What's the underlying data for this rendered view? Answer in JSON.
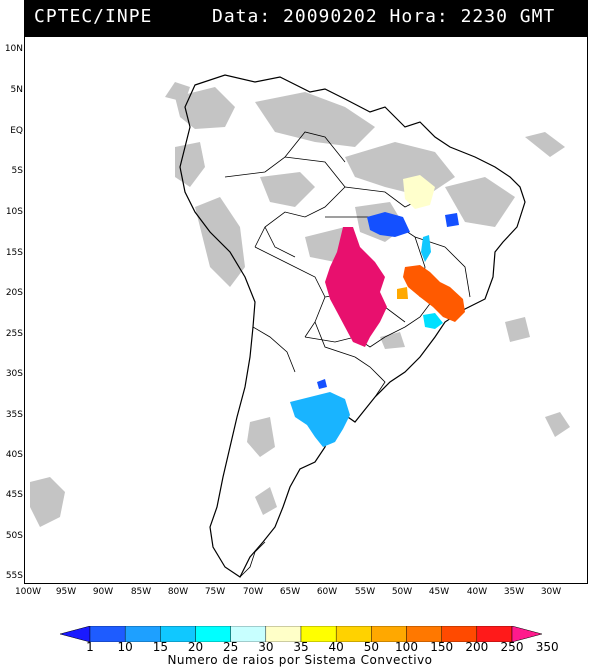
{
  "header": {
    "source": "CPTEC/INPE",
    "datetime": "Data: 20090202 Hora: 2230 GMT"
  },
  "map": {
    "lat_labels": [
      "10N",
      "5N",
      "EQ",
      "5S",
      "10S",
      "15S",
      "20S",
      "25S",
      "30S",
      "35S",
      "40S",
      "45S",
      "50S",
      "55S"
    ],
    "lon_labels": [
      "100W",
      "95W",
      "90W",
      "85W",
      "80W",
      "75W",
      "70W",
      "65W",
      "60W",
      "55W",
      "50W",
      "45W",
      "40W",
      "35W",
      "30W"
    ],
    "colors": {
      "land_outline": "#000000",
      "cloud": "#c4c4c4"
    }
  },
  "legend": {
    "title": "Numero de raios por Sistema Convectivo",
    "ticks": [
      "1",
      "10",
      "15",
      "20",
      "25",
      "30",
      "35",
      "40",
      "50",
      "100",
      "150",
      "200",
      "250",
      "350"
    ],
    "colors": [
      "#1a1aff",
      "#1e5cff",
      "#1ea0ff",
      "#10c8ff",
      "#00ffff",
      "#c8ffff",
      "#ffffc8",
      "#ffff00",
      "#ffd200",
      "#ffa800",
      "#ff7800",
      "#ff4a00",
      "#ff1a1a",
      "#ff1a8c"
    ]
  },
  "systems": [
    {
      "name": "pink-system",
      "color": "#e8106e",
      "count_class": "350"
    },
    {
      "name": "orange-system",
      "color": "#ff5a00",
      "count_class": "200"
    },
    {
      "name": "blue-system-north",
      "color": "#1450ff",
      "count_class": "10"
    },
    {
      "name": "cyan-system-south",
      "color": "#19b4ff",
      "count_class": "20"
    },
    {
      "name": "yellow-system",
      "color": "#ffffcc",
      "count_class": "35"
    }
  ]
}
